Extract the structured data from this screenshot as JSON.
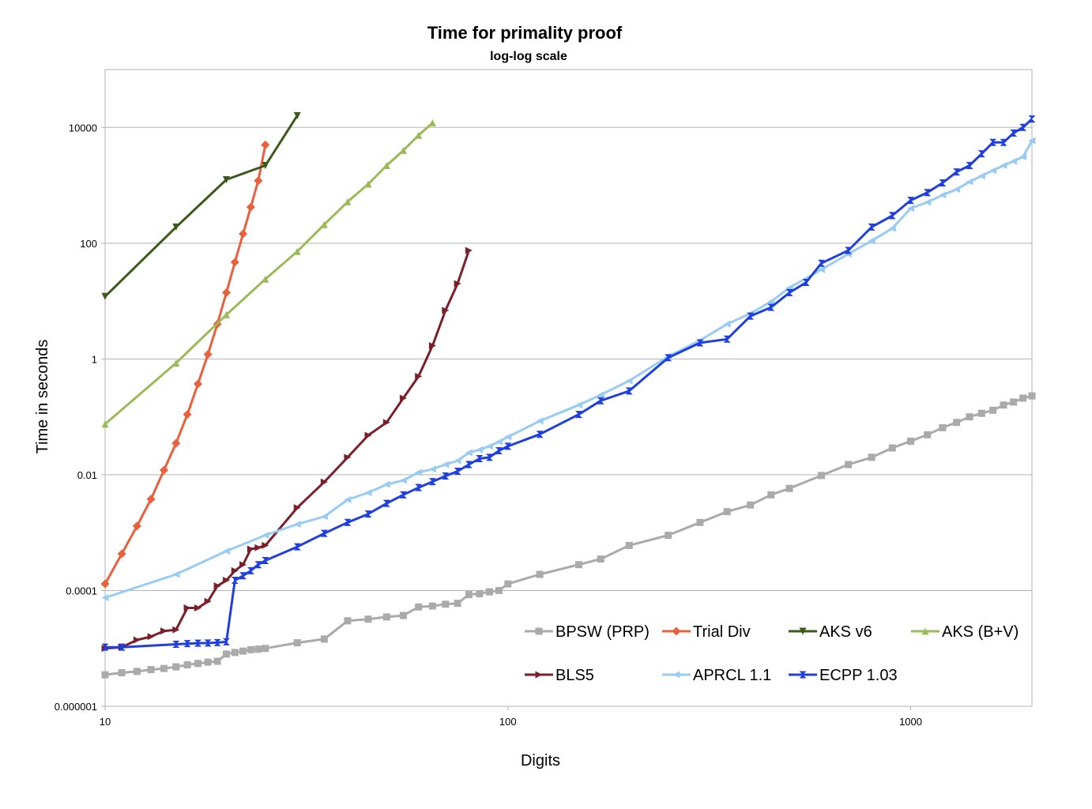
{
  "chart_data": {
    "type": "line",
    "title": "Time for primality proof",
    "subtitle": "log-log scale",
    "xlabel": "Digits",
    "ylabel": "Time in seconds",
    "x_scale": "log",
    "y_scale": "log",
    "xlim": [
      10,
      2000
    ],
    "ylim": [
      1e-06,
      100000
    ],
    "x_ticks": [
      10,
      100,
      1000
    ],
    "x_tick_labels": [
      "10",
      "100",
      "1000"
    ],
    "y_ticks": [
      1e-06,
      0.0001,
      0.01,
      1,
      100,
      10000
    ],
    "y_tick_labels": [
      "0.000001",
      "0.0001",
      "0.01",
      "1",
      "100",
      "10000"
    ],
    "grid": "horizontal major",
    "legend_position": "bottom-right",
    "series": [
      {
        "name": "BPSW (PRP)",
        "color": "#aaaaaa",
        "marker": "square",
        "x": [
          10,
          11,
          12,
          13,
          14,
          15,
          16,
          17,
          18,
          19,
          20,
          21,
          22,
          23,
          24,
          25,
          30,
          35,
          40,
          45,
          50,
          55,
          60,
          65,
          70,
          75,
          80,
          85,
          90,
          95,
          100,
          120,
          150,
          170,
          200,
          250,
          300,
          350,
          400,
          450,
          500,
          600,
          700,
          800,
          900,
          1000,
          1100,
          1200,
          1300,
          1400,
          1500,
          1600,
          1700,
          1800,
          1900,
          2000
        ],
        "y": [
          3.5e-06,
          3.8e-06,
          4e-06,
          4.3e-06,
          4.5e-06,
          4.8e-06,
          5.2e-06,
          5.5e-06,
          5.8e-06,
          6e-06,
          8e-06,
          8.5e-06,
          9e-06,
          9.5e-06,
          9.7e-06,
          1e-05,
          1.25e-05,
          1.45e-05,
          3e-05,
          3.2e-05,
          3.5e-05,
          3.7e-05,
          5.2e-05,
          5.4e-05,
          5.8e-05,
          6e-05,
          8.5e-05,
          8.8e-05,
          9.5e-05,
          0.0001,
          0.00013,
          0.00019,
          0.00028,
          0.00035,
          0.0006,
          0.0009,
          0.0015,
          0.0023,
          0.003,
          0.0045,
          0.0058,
          0.0097,
          0.015,
          0.02,
          0.029,
          0.038,
          0.049,
          0.065,
          0.08,
          0.1,
          0.115,
          0.13,
          0.16,
          0.18,
          0.21,
          0.23
        ]
      },
      {
        "name": "Trial Div",
        "color": "#e8603c",
        "marker": "diamond",
        "x": [
          10,
          11,
          12,
          13,
          14,
          15,
          16,
          17,
          18,
          19,
          20,
          21,
          22,
          23,
          24,
          25
        ],
        "y": [
          0.00013,
          0.00043,
          0.0013,
          0.0038,
          0.012,
          0.035,
          0.11,
          0.37,
          1.2,
          4.0,
          14,
          47,
          145,
          420,
          1200,
          5000
        ]
      },
      {
        "name": "AKS v6",
        "color": "#3a5a1a",
        "marker": "triangle-down",
        "x": [
          10,
          15,
          20,
          25,
          30
        ],
        "y": [
          12,
          190,
          1250,
          2200,
          16000
        ]
      },
      {
        "name": "AKS (B+V)",
        "color": "#9bbb59",
        "marker": "triangle-up",
        "x": [
          10,
          15,
          20,
          25,
          30,
          35,
          40,
          45,
          50,
          55,
          60,
          65
        ],
        "y": [
          0.075,
          0.85,
          5.8,
          24,
          72,
          210,
          520,
          1050,
          2200,
          4000,
          7300,
          12000
        ]
      },
      {
        "name": "BLS5",
        "color": "#7b1f2a",
        "marker": "triangle-right",
        "x": [
          10,
          11,
          12,
          13,
          14,
          15,
          16,
          17,
          18,
          19,
          20,
          21,
          22,
          23,
          24,
          25,
          30,
          35,
          40,
          45,
          50,
          55,
          60,
          65,
          70,
          75,
          80
        ],
        "y": [
          1e-05,
          1.05e-05,
          1.4e-05,
          1.6e-05,
          2e-05,
          2.1e-05,
          5e-05,
          5e-05,
          6.5e-05,
          0.00012,
          0.00015,
          0.00022,
          0.00028,
          0.00052,
          0.00055,
          0.0006,
          0.0027,
          0.0075,
          0.02,
          0.048,
          0.08,
          0.21,
          0.5,
          1.7,
          6.9,
          20,
          75
        ]
      },
      {
        "name": "APRCL 1.1",
        "color": "#99ccf2",
        "marker": "triangle-left",
        "x": [
          10,
          15,
          20,
          25,
          30,
          35,
          40,
          45,
          50,
          55,
          60,
          65,
          70,
          75,
          80,
          85,
          90,
          95,
          100,
          120,
          150,
          170,
          200,
          250,
          300,
          350,
          400,
          450,
          500,
          600,
          700,
          800,
          900,
          1000,
          1100,
          1200,
          1300,
          1400,
          1500,
          1600,
          1700,
          1800,
          1900,
          2000
        ],
        "y": [
          7.5e-05,
          0.00019,
          0.00048,
          0.0009,
          0.0014,
          0.0019,
          0.0037,
          0.0049,
          0.0068,
          0.008,
          0.011,
          0.0125,
          0.015,
          0.0175,
          0.024,
          0.027,
          0.031,
          0.037,
          0.045,
          0.085,
          0.16,
          0.24,
          0.42,
          1.1,
          2.1,
          4.0,
          6.1,
          9.8,
          17,
          35,
          65,
          110,
          180,
          400,
          510,
          680,
          850,
          1150,
          1450,
          1800,
          2200,
          2600,
          3100,
          5900
        ]
      },
      {
        "name": "ECPP 1.03",
        "color": "#1f3fe0",
        "marker": "star",
        "x": [
          10,
          11,
          15,
          16,
          17,
          18,
          19,
          20,
          21,
          22,
          23,
          24,
          25,
          30,
          35,
          40,
          45,
          50,
          55,
          60,
          65,
          70,
          75,
          80,
          85,
          90,
          95,
          100,
          120,
          150,
          170,
          200,
          250,
          300,
          350,
          400,
          450,
          500,
          550,
          600,
          700,
          800,
          900,
          1000,
          1100,
          1200,
          1300,
          1400,
          1500,
          1600,
          1700,
          1800,
          1900,
          2000
        ],
        "y": [
          1.05e-05,
          1.05e-05,
          1.18e-05,
          1.21e-05,
          1.23e-05,
          1.24e-05,
          1.26e-05,
          1.3e-05,
          0.00015,
          0.00018,
          0.00022,
          0.00028,
          0.00033,
          0.00057,
          0.00097,
          0.0015,
          0.0021,
          0.0032,
          0.0045,
          0.006,
          0.0076,
          0.0095,
          0.0115,
          0.015,
          0.019,
          0.02,
          0.026,
          0.031,
          0.05,
          0.11,
          0.19,
          0.28,
          1.05,
          1.9,
          2.2,
          5.5,
          7.8,
          14,
          21,
          45,
          75,
          190,
          300,
          550,
          750,
          1100,
          1700,
          2200,
          3500,
          5500,
          5500,
          8000,
          10000,
          14000
        ]
      }
    ]
  }
}
